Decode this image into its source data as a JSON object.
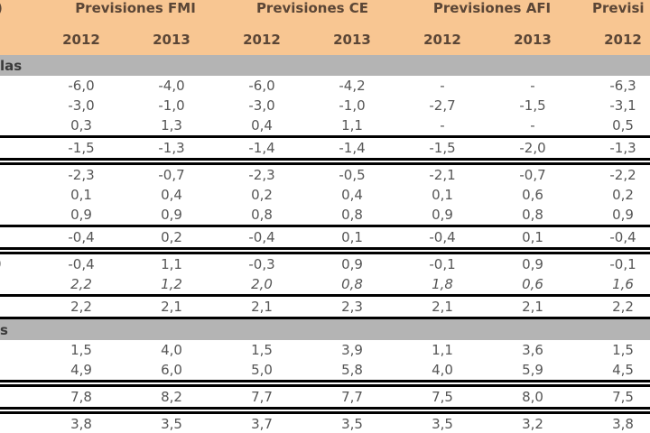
{
  "clipped_fragments": {
    "title": ")",
    "section1_band": "las",
    "row9_label": ")",
    "section2_band": "s"
  },
  "colors": {
    "header_bg": "#F8C692",
    "header_text": "#5B4636",
    "band_bg": "#B4B4B4",
    "data_text": "#565656",
    "rule": "#000000"
  },
  "table": {
    "header_groups": [
      {
        "label": "Previsiones FMI",
        "years": [
          "2012",
          "2013"
        ]
      },
      {
        "label": "Previsiones CE",
        "years": [
          "2012",
          "2013"
        ]
      },
      {
        "label": "Previsiones AFI",
        "years": [
          "2012",
          "2013"
        ]
      },
      {
        "label": "Previsi",
        "years": [
          "2012"
        ]
      }
    ],
    "years_row": [
      "2012",
      "2013",
      "2012",
      "2013",
      "2012",
      "2013",
      "2012"
    ],
    "sections": [
      {
        "band_label": "las",
        "rows": [
          {
            "style": "plain",
            "label": "",
            "values": [
              "-6,0",
              "-4,0",
              "-6,0",
              "-4,2",
              "-",
              "-",
              "-6,3"
            ]
          },
          {
            "style": "plain",
            "label": "",
            "values": [
              "-3,0",
              "-1,0",
              "-3,0",
              "-1,0",
              "-2,7",
              "-1,5",
              "-3,1"
            ]
          },
          {
            "style": "plain",
            "label": "",
            "values": [
              "0,3",
              "1,3",
              "0,4",
              "1,1",
              "-",
              "-",
              "0,5"
            ]
          },
          {
            "style": "total",
            "double_bottom": true,
            "label": "",
            "values": [
              "-1,5",
              "-1,3",
              "-1,4",
              "-1,4",
              "-1,5",
              "-2,0",
              "-1,3"
            ]
          },
          {
            "style": "plain",
            "label": "",
            "values": [
              "-2,3",
              "-0,7",
              "-2,3",
              "-0,5",
              "-2,1",
              "-0,7",
              "-2,2"
            ]
          },
          {
            "style": "plain",
            "label": "",
            "values": [
              "0,1",
              "0,4",
              "0,2",
              "0,4",
              "0,1",
              "0,6",
              "0,2"
            ]
          },
          {
            "style": "plain",
            "label": "",
            "values": [
              "0,9",
              "0,9",
              "0,8",
              "0,8",
              "0,9",
              "0,8",
              "0,9"
            ]
          },
          {
            "style": "total",
            "double_bottom": true,
            "label": "",
            "values": [
              "-0,4",
              "0,2",
              "-0,4",
              "0,1",
              "-0,4",
              "0,1",
              "-0,4"
            ]
          },
          {
            "style": "plain",
            "label": ")",
            "values": [
              "-0,4",
              "1,1",
              "-0,3",
              "0,9",
              "-0,1",
              "0,9",
              "-0,1"
            ]
          },
          {
            "style": "italic",
            "label": "",
            "values": [
              "2,2",
              "1,2",
              "2,0",
              "0,8",
              "1,8",
              "0,6",
              "1,6"
            ]
          },
          {
            "style": "total",
            "label": "",
            "values": [
              "2,2",
              "2,1",
              "2,1",
              "2,3",
              "2,1",
              "2,1",
              "2,2"
            ]
          }
        ]
      },
      {
        "band_label": "s",
        "rows": [
          {
            "style": "plain",
            "label": "",
            "values": [
              "1,5",
              "4,0",
              "1,5",
              "3,9",
              "1,1",
              "3,6",
              "1,5"
            ]
          },
          {
            "style": "plain",
            "label": "",
            "values": [
              "4,9",
              "6,0",
              "5,0",
              "5,8",
              "4,0",
              "5,9",
              "4,5"
            ]
          },
          {
            "style": "total",
            "double_top": true,
            "double_bottom": true,
            "label": "",
            "values": [
              "7,8",
              "8,2",
              "7,7",
              "7,7",
              "7,5",
              "8,0",
              "7,5"
            ]
          },
          {
            "style": "plain",
            "label": "",
            "values": [
              "3,8",
              "3,5",
              "3,7",
              "3,5",
              "3,5",
              "3,2",
              "3,8"
            ]
          }
        ]
      }
    ]
  },
  "chart_data": {
    "type": "table",
    "title": "",
    "column_groups": [
      "Previsiones FMI",
      "Previsiones CE",
      "Previsiones AFI",
      "Previsi (clipped)"
    ],
    "columns": [
      "FMI 2012",
      "FMI 2013",
      "CE 2012",
      "CE 2013",
      "AFI 2012",
      "AFI 2013",
      "(clipped) 2012"
    ],
    "sections": [
      {
        "band": "…las (clipped section header)",
        "rows": [
          [
            "-6,0",
            "-4,0",
            "-6,0",
            "-4,2",
            "-",
            "-",
            "-6,3"
          ],
          [
            "-3,0",
            "-1,0",
            "-3,0",
            "-1,0",
            "-2,7",
            "-1,5",
            "-3,1"
          ],
          [
            "0,3",
            "1,3",
            "0,4",
            "1,1",
            "-",
            "-",
            "0,5"
          ],
          [
            "-1,5",
            "-1,3",
            "-1,4",
            "-1,4",
            "-1,5",
            "-2,0",
            "-1,3"
          ],
          [
            "-2,3",
            "-0,7",
            "-2,3",
            "-0,5",
            "-2,1",
            "-0,7",
            "-2,2"
          ],
          [
            "0,1",
            "0,4",
            "0,2",
            "0,4",
            "0,1",
            "0,6",
            "0,2"
          ],
          [
            "0,9",
            "0,9",
            "0,8",
            "0,8",
            "0,9",
            "0,8",
            "0,9"
          ],
          [
            "-0,4",
            "0,2",
            "-0,4",
            "0,1",
            "-0,4",
            "0,1",
            "-0,4"
          ],
          [
            "-0,4",
            "1,1",
            "-0,3",
            "0,9",
            "-0,1",
            "0,9",
            "-0,1"
          ],
          [
            "2,2",
            "1,2",
            "2,0",
            "0,8",
            "1,8",
            "0,6",
            "1,6"
          ],
          [
            "2,2",
            "2,1",
            "2,1",
            "2,3",
            "2,1",
            "2,1",
            "2,2"
          ]
        ]
      },
      {
        "band": "…s (clipped section header)",
        "rows": [
          [
            "1,5",
            "4,0",
            "1,5",
            "3,9",
            "1,1",
            "3,6",
            "1,5"
          ],
          [
            "4,9",
            "6,0",
            "5,0",
            "5,8",
            "4,0",
            "5,9",
            "4,5"
          ],
          [
            "7,8",
            "8,2",
            "7,7",
            "7,7",
            "7,5",
            "8,0",
            "7,5"
          ],
          [
            "3,8",
            "3,5",
            "3,7",
            "3,5",
            "3,5",
            "3,2",
            "3,8"
          ]
        ]
      }
    ]
  }
}
